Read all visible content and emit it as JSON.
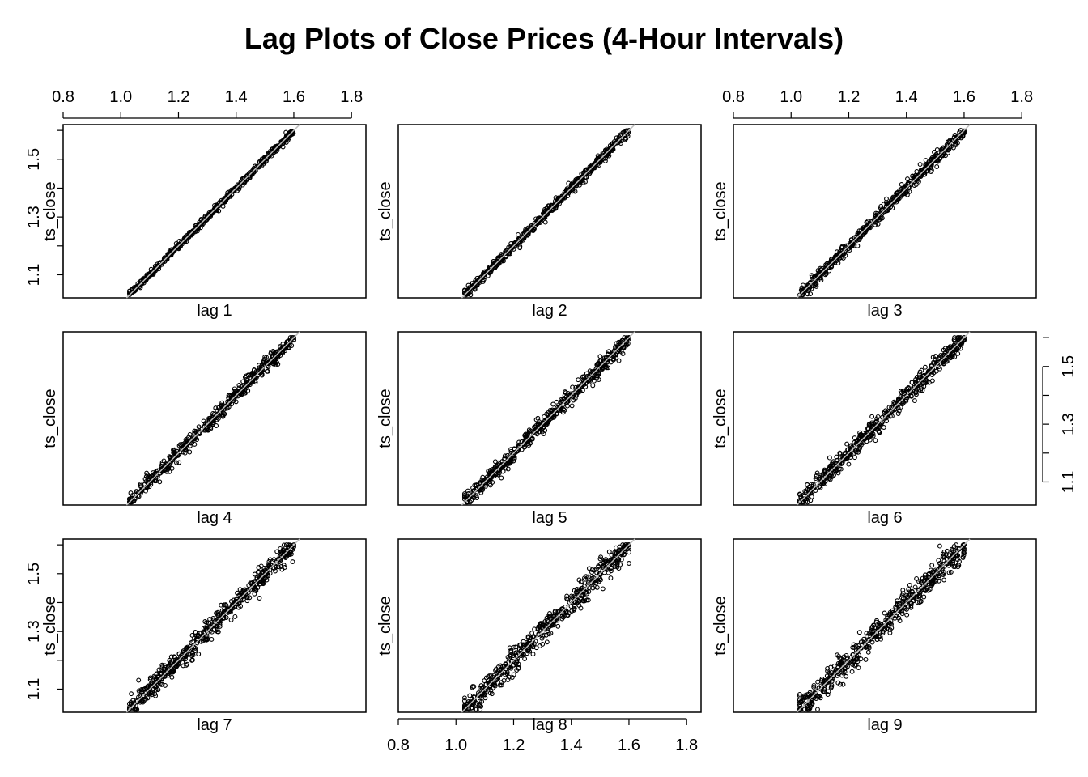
{
  "chart_data": {
    "type": "scatter",
    "title": "Lag Plots of Close Prices (4-Hour Intervals)",
    "layout": "3x3 panels",
    "ylabel": "ts_close",
    "series_name": "ts_close",
    "x_ticks": [
      "0.8",
      "1.0",
      "1.2",
      "1.4",
      "1.6",
      "1.8"
    ],
    "y_ticks": [
      "1.1",
      "1.3",
      "1.5"
    ],
    "xlim": [
      0.8,
      1.85
    ],
    "ylim": [
      1.02,
      1.62
    ],
    "reference_line": "y = x",
    "grid": false,
    "legend": "none",
    "panels": [
      {
        "label": "lag 1",
        "lag": 1,
        "data_range": [
          1.03,
          1.6
        ],
        "spread": 0.006,
        "tick_axes": [
          "top",
          "left"
        ]
      },
      {
        "label": "lag 2",
        "lag": 2,
        "data_range": [
          1.03,
          1.6
        ],
        "spread": 0.009,
        "tick_axes": []
      },
      {
        "label": "lag 3",
        "lag": 3,
        "data_range": [
          1.03,
          1.6
        ],
        "spread": 0.011,
        "tick_axes": [
          "top"
        ]
      },
      {
        "label": "lag 4",
        "lag": 4,
        "data_range": [
          1.03,
          1.6
        ],
        "spread": 0.013,
        "tick_axes": []
      },
      {
        "label": "lag 5",
        "lag": 5,
        "data_range": [
          1.03,
          1.6
        ],
        "spread": 0.015,
        "tick_axes": []
      },
      {
        "label": "lag 6",
        "lag": 6,
        "data_range": [
          1.03,
          1.6
        ],
        "spread": 0.017,
        "tick_axes": [
          "right"
        ]
      },
      {
        "label": "lag 7",
        "lag": 7,
        "data_range": [
          1.03,
          1.6
        ],
        "spread": 0.019,
        "tick_axes": [
          "left"
        ]
      },
      {
        "label": "lag 8",
        "lag": 8,
        "data_range": [
          1.03,
          1.6
        ],
        "spread": 0.021,
        "tick_axes": [
          "bottom"
        ]
      },
      {
        "label": "lag 9",
        "lag": 9,
        "data_range": [
          1.03,
          1.6
        ],
        "spread": 0.023,
        "tick_axes": []
      }
    ]
  }
}
